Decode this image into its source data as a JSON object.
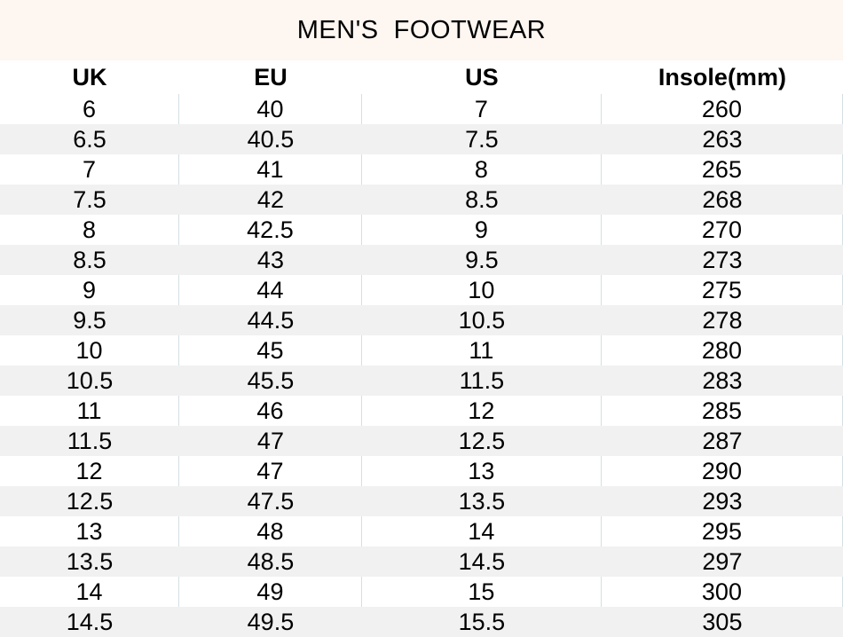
{
  "title": "MEN'S  FOOTWEAR",
  "colors": {
    "title_band_bg": "#fdf6f1",
    "stripe_bg": "#f1f1f1",
    "divider": "#d5dfe4",
    "text": "#000000"
  },
  "table": {
    "headers": [
      "UK",
      "EU",
      "US",
      "Insole(mm)"
    ],
    "rows": [
      [
        "6",
        "40",
        "7",
        "260"
      ],
      [
        "6.5",
        "40.5",
        "7.5",
        "263"
      ],
      [
        "7",
        "41",
        "8",
        "265"
      ],
      [
        "7.5",
        "42",
        "8.5",
        "268"
      ],
      [
        "8",
        "42.5",
        "9",
        "270"
      ],
      [
        "8.5",
        "43",
        "9.5",
        "273"
      ],
      [
        "9",
        "44",
        "10",
        "275"
      ],
      [
        "9.5",
        "44.5",
        "10.5",
        "278"
      ],
      [
        "10",
        "45",
        "11",
        "280"
      ],
      [
        "10.5",
        "45.5",
        "11.5",
        "283"
      ],
      [
        "11",
        "46",
        "12",
        "285"
      ],
      [
        "11.5",
        "47",
        "12.5",
        "287"
      ],
      [
        "12",
        "47",
        "13",
        "290"
      ],
      [
        "12.5",
        "47.5",
        "13.5",
        "293"
      ],
      [
        "13",
        "48",
        "14",
        "295"
      ],
      [
        "13.5",
        "48.5",
        "14.5",
        "297"
      ],
      [
        "14",
        "49",
        "15",
        "300"
      ],
      [
        "14.5",
        "49.5",
        "15.5",
        "305"
      ]
    ]
  },
  "chart_data": {
    "type": "table",
    "title": "MEN'S FOOTWEAR",
    "columns": [
      "UK",
      "EU",
      "US",
      "Insole(mm)"
    ],
    "rows": [
      [
        6,
        40,
        7,
        260
      ],
      [
        6.5,
        40.5,
        7.5,
        263
      ],
      [
        7,
        41,
        8,
        265
      ],
      [
        7.5,
        42,
        8.5,
        268
      ],
      [
        8,
        42.5,
        9,
        270
      ],
      [
        8.5,
        43,
        9.5,
        273
      ],
      [
        9,
        44,
        10,
        275
      ],
      [
        9.5,
        44.5,
        10.5,
        278
      ],
      [
        10,
        45,
        11,
        280
      ],
      [
        10.5,
        45.5,
        11.5,
        283
      ],
      [
        11,
        46,
        12,
        285
      ],
      [
        11.5,
        47,
        12.5,
        287
      ],
      [
        12,
        47,
        13,
        290
      ],
      [
        12.5,
        47.5,
        13.5,
        293
      ],
      [
        13,
        48,
        14,
        295
      ],
      [
        13.5,
        48.5,
        14.5,
        297
      ],
      [
        14,
        49,
        15,
        300
      ],
      [
        14.5,
        49.5,
        15.5,
        305
      ]
    ],
    "layout_hints": {
      "striped_rows": true,
      "stripe_pattern": "even data rows shaded",
      "column_dividers_on_white_rows_only": true
    }
  }
}
